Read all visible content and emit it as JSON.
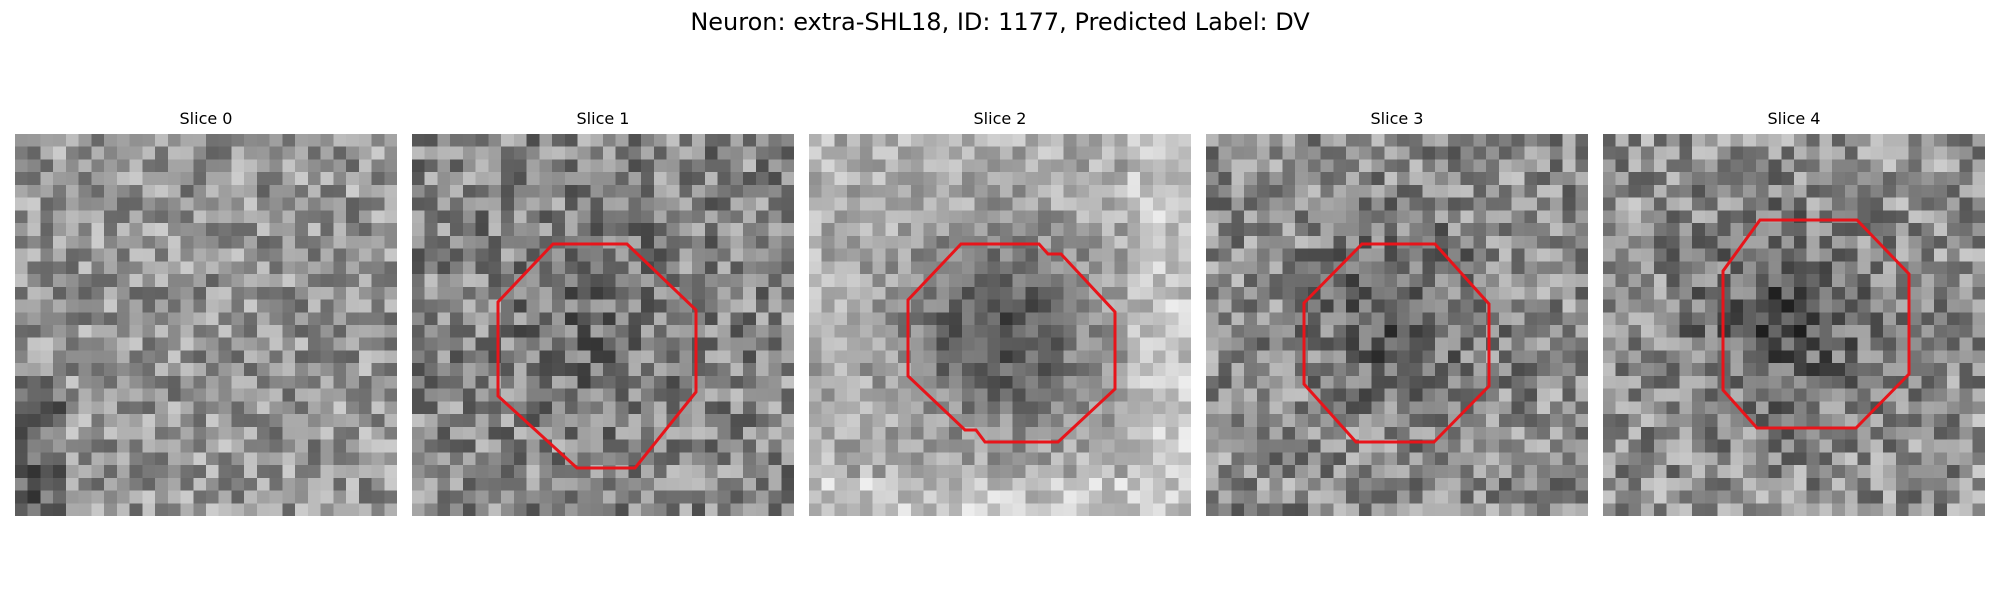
{
  "figure": {
    "title": "Neuron: extra-SHL18, ID: 1177, Predicted Label: DV"
  },
  "panels": [
    {
      "title": "Slice 0",
      "has_roi": false
    },
    {
      "title": "Slice 1",
      "has_roi": true
    },
    {
      "title": "Slice 2",
      "has_roi": true
    },
    {
      "title": "Slice 3",
      "has_roi": true
    },
    {
      "title": "Slice 4",
      "has_roi": true
    }
  ],
  "style": {
    "roi_color": "#e8141a",
    "colormap": "gray"
  }
}
